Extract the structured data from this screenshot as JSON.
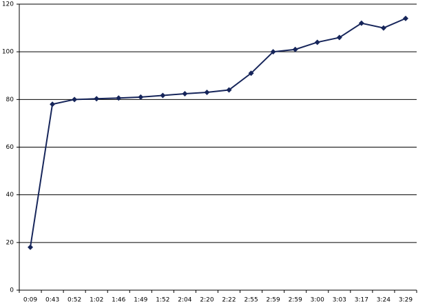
{
  "chart_data": {
    "type": "line",
    "categories": [
      "0:09",
      "0:43",
      "0:52",
      "1:02",
      "1:46",
      "1:49",
      "1:52",
      "2:04",
      "2:20",
      "2:22",
      "2:55",
      "2:59",
      "2:59",
      "3:00",
      "3:03",
      "3:17",
      "3:24",
      "3:29"
    ],
    "values": [
      18,
      78,
      80,
      80.3,
      80.6,
      81,
      81.7,
      82.4,
      83,
      84,
      91,
      100,
      101,
      104,
      106,
      112,
      110,
      114
    ],
    "color": "#16255a",
    "ylim": [
      0,
      120
    ],
    "yticks": [
      0,
      20,
      40,
      60,
      80,
      100,
      120
    ],
    "grid": true
  }
}
